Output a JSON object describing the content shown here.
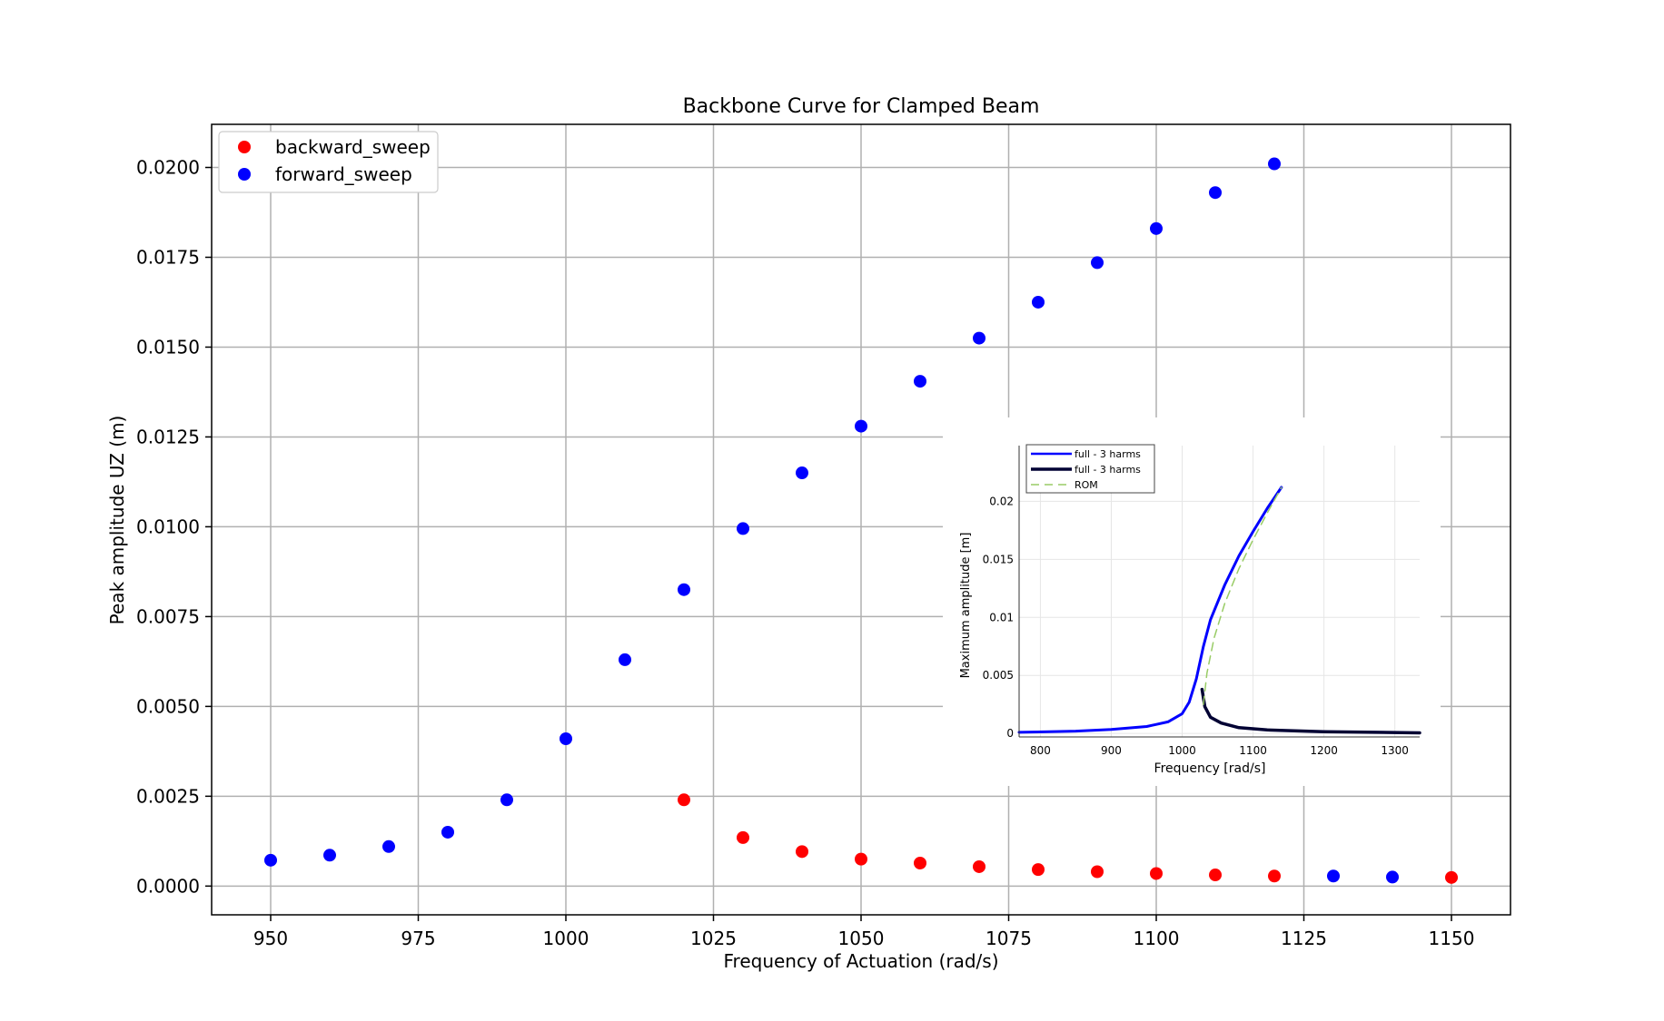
{
  "chart_data": [
    {
      "type": "scatter",
      "title": "Backbone Curve for Clamped Beam",
      "xlabel": "Frequency of Actuation (rad/s)",
      "ylabel": "Peak amplitude UZ (m)",
      "xlim": [
        940,
        1160
      ],
      "ylim": [
        -0.0008,
        0.0212
      ],
      "xticks": [
        950,
        975,
        1000,
        1025,
        1050,
        1075,
        1100,
        1125,
        1150
      ],
      "xtick_labels": [
        "950",
        "975",
        "1000",
        "1025",
        "1050",
        "1075",
        "1100",
        "1125",
        "1150"
      ],
      "yticks": [
        0.0,
        0.0025,
        0.005,
        0.0075,
        0.01,
        0.0125,
        0.015,
        0.0175,
        0.02
      ],
      "ytick_labels": [
        "0.0000",
        "0.0025",
        "0.0050",
        "0.0075",
        "0.0100",
        "0.0125",
        "0.0150",
        "0.0175",
        "0.0200"
      ],
      "grid": true,
      "legend_position": "top-left",
      "series": [
        {
          "name": "backward_sweep",
          "color": "#ff0000",
          "points": [
            [
              1020,
              0.0024
            ],
            [
              1030,
              0.00135
            ],
            [
              1040,
              0.00096
            ],
            [
              1050,
              0.00075
            ],
            [
              1060,
              0.00064
            ],
            [
              1070,
              0.00054
            ],
            [
              1080,
              0.00046
            ],
            [
              1090,
              0.0004
            ],
            [
              1100,
              0.00035
            ],
            [
              1110,
              0.00031
            ],
            [
              1120,
              0.00028
            ],
            [
              1150,
              0.00024
            ]
          ]
        },
        {
          "name": "forward_sweep",
          "color": "#0000ff",
          "points": [
            [
              950,
              0.00072
            ],
            [
              960,
              0.00086
            ],
            [
              970,
              0.0011
            ],
            [
              980,
              0.0015
            ],
            [
              990,
              0.0024
            ],
            [
              1000,
              0.0041
            ],
            [
              1010,
              0.0063
            ],
            [
              1020,
              0.00825
            ],
            [
              1030,
              0.00995
            ],
            [
              1040,
              0.0115
            ],
            [
              1050,
              0.0128
            ],
            [
              1060,
              0.01405
            ],
            [
              1070,
              0.01525
            ],
            [
              1080,
              0.01625
            ],
            [
              1090,
              0.01735
            ],
            [
              1100,
              0.0183
            ],
            [
              1110,
              0.0193
            ],
            [
              1120,
              0.0201
            ],
            [
              1130,
              0.00028
            ],
            [
              1140,
              0.00025
            ]
          ]
        }
      ]
    },
    {
      "type": "line",
      "title": "",
      "xlabel": "Frequency [rad/s]",
      "ylabel": "Maximum amplitude [m]",
      "xlim": [
        770,
        1335
      ],
      "ylim": [
        -0.0003,
        0.0248
      ],
      "xticks": [
        800,
        900,
        1000,
        1100,
        1200,
        1300
      ],
      "xtick_labels": [
        "800",
        "900",
        "1000",
        "1100",
        "1200",
        "1300"
      ],
      "yticks": [
        0,
        0.005,
        0.01,
        0.015,
        0.02
      ],
      "ytick_labels": [
        "0",
        "0.005",
        "0.01",
        "0.015",
        "0.02"
      ],
      "grid": true,
      "legend_position": "top-left",
      "series": [
        {
          "name": "full - 3 harms",
          "color": "#0000ff",
          "style": "solid",
          "points": [
            [
              770,
              0.0001
            ],
            [
              850,
              0.0002
            ],
            [
              900,
              0.00035
            ],
            [
              950,
              0.0006
            ],
            [
              980,
              0.001
            ],
            [
              1000,
              0.0017
            ],
            [
              1010,
              0.0027
            ],
            [
              1020,
              0.0047
            ],
            [
              1030,
              0.0075
            ],
            [
              1040,
              0.0098
            ],
            [
              1060,
              0.0128
            ],
            [
              1080,
              0.0153
            ],
            [
              1100,
              0.0174
            ],
            [
              1120,
              0.0194
            ],
            [
              1140,
              0.0212
            ]
          ]
        },
        {
          "name": "full - 3 harms",
          "color": "#000033",
          "style": "solid",
          "points": [
            [
              1028,
              0.0038
            ],
            [
              1032,
              0.0023
            ],
            [
              1040,
              0.0014
            ],
            [
              1055,
              0.0009
            ],
            [
              1080,
              0.0005
            ],
            [
              1120,
              0.0003
            ],
            [
              1200,
              0.00015
            ],
            [
              1335,
              5e-05
            ]
          ]
        },
        {
          "name": "ROM",
          "color": "#99cc66",
          "style": "dashed",
          "points": [
            [
              1030,
              0.0025
            ],
            [
              1035,
              0.0052
            ],
            [
              1045,
              0.0082
            ],
            [
              1060,
              0.0112
            ],
            [
              1080,
              0.0142
            ],
            [
              1100,
              0.0167
            ],
            [
              1120,
              0.019
            ],
            [
              1140,
              0.0212
            ]
          ]
        }
      ]
    }
  ]
}
